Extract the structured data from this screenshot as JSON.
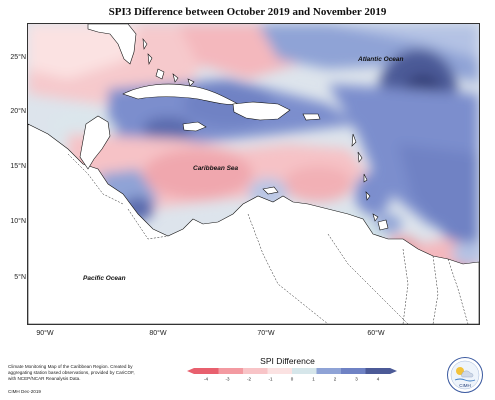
{
  "title": "SPI3 Difference between October 2019 and November 2019",
  "map": {
    "lat_labels": [
      "25°N",
      "20°N",
      "15°N",
      "10°N",
      "5°N"
    ],
    "lon_labels": [
      "90°W",
      "80°W",
      "70°W",
      "60°W"
    ],
    "labels": {
      "atlantic": "Atlantic Ocean",
      "caribbean": "Caribbean Sea",
      "pacific": "Pacific Ocean"
    }
  },
  "legend": {
    "title": "SPI Difference",
    "ticks": [
      "-4",
      "-3",
      "-2",
      "-1",
      "0",
      "1",
      "2",
      "3",
      "4"
    ],
    "colors": [
      "#e8606e",
      "#f39aa1",
      "#f8c4c7",
      "#fbe2e2",
      "#d6e6ea",
      "#8fa3d6",
      "#6f82c4",
      "#4c5a97"
    ]
  },
  "note": "Climate Monitoring Map of the Caribbean Region. Created by aggregating station based observations, provided by CariCOF, with NCEP/NCAR Reanalysis Data.",
  "credit": "CIMH Dec-2019",
  "logo_text": "CIMH"
}
